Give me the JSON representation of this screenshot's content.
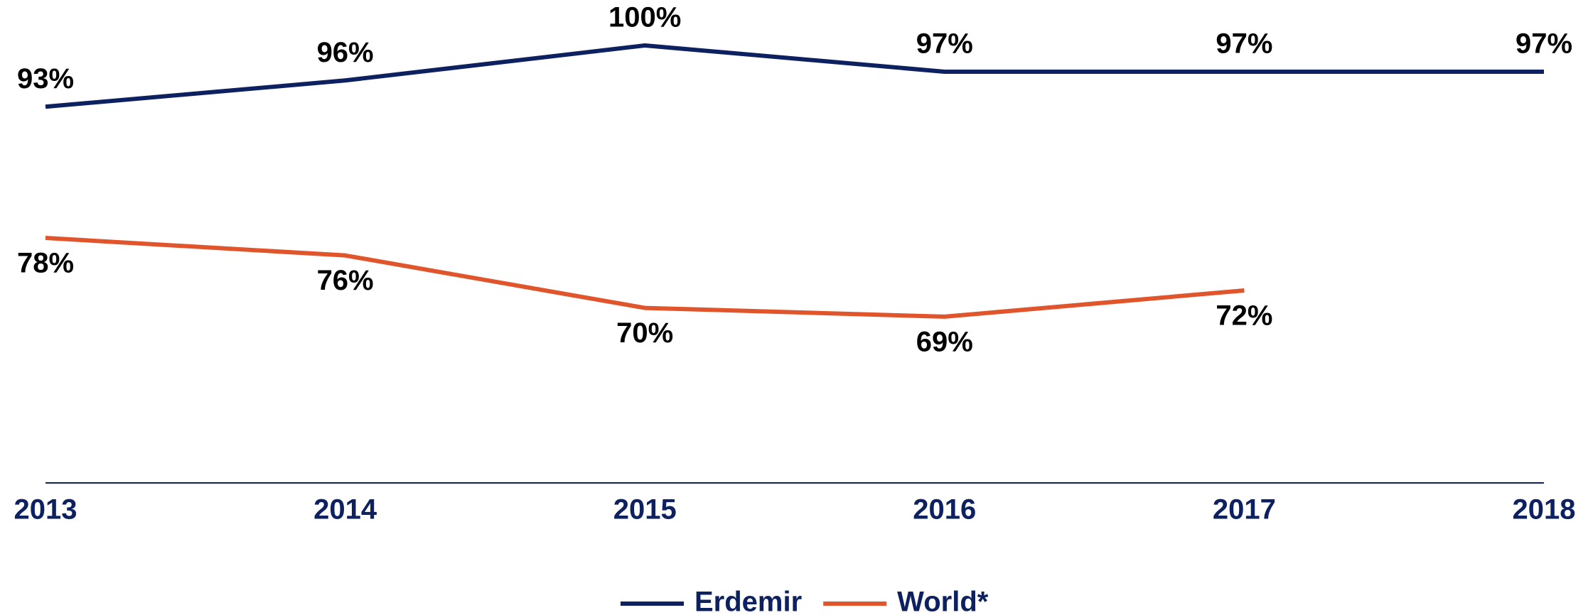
{
  "chart_data": {
    "type": "line",
    "categories": [
      "2013",
      "2014",
      "2015",
      "2016",
      "2017",
      "2018"
    ],
    "ylim": [
      50,
      100
    ],
    "legend": "bottom",
    "series": [
      {
        "name": "Erdemir",
        "color": "#0d2160",
        "values": [
          93,
          96,
          100,
          97,
          97,
          97
        ],
        "value_labels": [
          "93%",
          "96%",
          "100%",
          "97%",
          "97%",
          "97%"
        ]
      },
      {
        "name": "World*",
        "color": "#e0552b",
        "values": [
          78,
          76,
          70,
          69,
          72,
          null
        ],
        "value_labels": [
          "78%",
          "76%",
          "70%",
          "69%",
          "72%",
          null
        ]
      }
    ]
  }
}
